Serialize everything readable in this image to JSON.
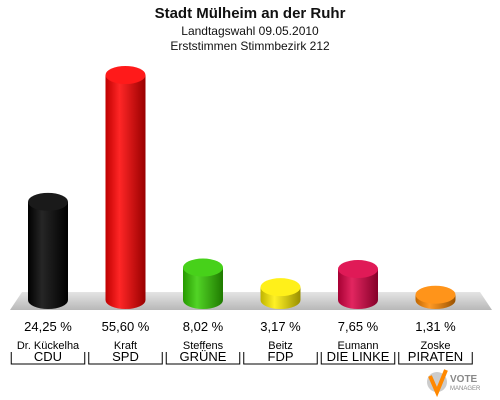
{
  "chart_data": {
    "type": "bar",
    "title": "Stadt Mülheim an der Ruhr",
    "subtitle_1": "Landtagswahl 09.05.2010",
    "subtitle_2": "Erststimmen Stimmbezirk 212",
    "categories": [
      "CDU",
      "SPD",
      "GRÜNE",
      "FDP",
      "DIE LINKE",
      "PIRATEN"
    ],
    "candidates": [
      "Dr. Kückelha",
      "Kraft",
      "Steffens",
      "Beitz",
      "Eumann",
      "Zoske"
    ],
    "values": [
      24.25,
      55.6,
      8.02,
      3.17,
      7.65,
      1.31
    ],
    "value_labels": [
      "24,25 %",
      "55,60 %",
      "8,02 %",
      "3,17 %",
      "7,65 %",
      "1,31 %"
    ],
    "colors": [
      "#000000",
      "#ff0000",
      "#33cc00",
      "#ffee00",
      "#dd0044",
      "#ff8800"
    ],
    "ylim": [
      0,
      55.6
    ]
  },
  "logo": {
    "line1": "VOTE",
    "line2": "MANAGER"
  }
}
